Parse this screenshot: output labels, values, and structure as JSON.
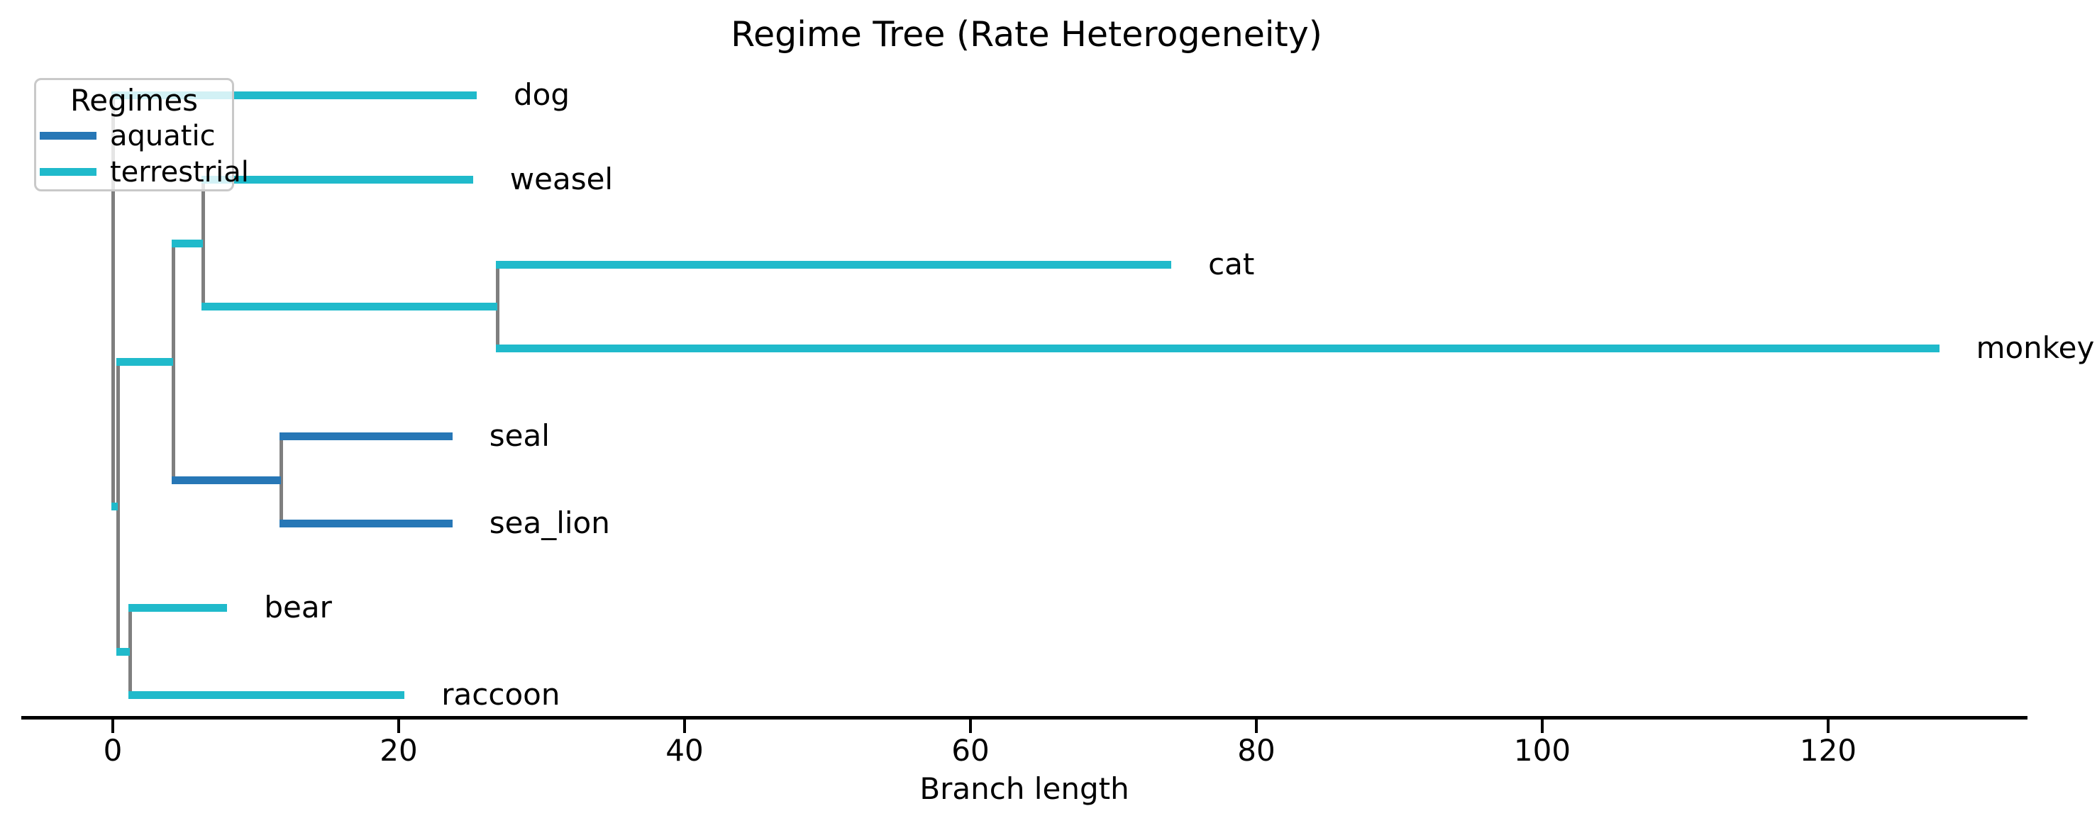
{
  "chart_data": {
    "type": "phylogenetic-tree",
    "title": "Regime Tree (Rate Heterogeneity)",
    "xlabel": "Branch length",
    "x_ticks": {
      "values": [
        0,
        20,
        40,
        60,
        80,
        100,
        120
      ],
      "labels": [
        "0",
        "20",
        "40",
        "60",
        "80",
        "100",
        "120"
      ]
    },
    "axis": {
      "xlim": [
        -6.4,
        134.2
      ],
      "grid": false,
      "visible_spines": [
        "bottom"
      ]
    },
    "legend": {
      "title": "Regimes",
      "position": "upper-left",
      "entries": [
        {
          "label": "aquatic",
          "color": "#2777b6"
        },
        {
          "label": "terrestrial",
          "color": "#20bacb"
        }
      ]
    },
    "regime_colors": {
      "aquatic": "#2777b6",
      "terrestrial": "#20bacb"
    },
    "connector_color": "#7f7f7f",
    "tip_order": [
      "dog",
      "weasel",
      "cat",
      "monkey",
      "seal",
      "sea_lion",
      "bear",
      "raccoon"
    ],
    "nodes": [
      {
        "id": "root",
        "parent": null,
        "length": 0,
        "regime": "terrestrial",
        "tip": false
      },
      {
        "id": "dog",
        "parent": "root",
        "length": 25.46,
        "regime": "terrestrial",
        "tip": true
      },
      {
        "id": "A",
        "parent": "root",
        "length": 0.36,
        "regime": "terrestrial",
        "tip": false
      },
      {
        "id": "B",
        "parent": "A",
        "length": 0.85,
        "regime": "terrestrial",
        "tip": false
      },
      {
        "id": "raccoon",
        "parent": "B",
        "length": 19.2,
        "regime": "terrestrial",
        "tip": true
      },
      {
        "id": "bear",
        "parent": "B",
        "length": 6.8,
        "regime": "terrestrial",
        "tip": true
      },
      {
        "id": "C",
        "parent": "A",
        "length": 3.87,
        "regime": "terrestrial",
        "tip": false
      },
      {
        "id": "D",
        "parent": "C",
        "length": 7.53,
        "regime": "aquatic",
        "tip": false
      },
      {
        "id": "seal",
        "parent": "D",
        "length": 12.0,
        "regime": "aquatic",
        "tip": true
      },
      {
        "id": "sea_lion",
        "parent": "D",
        "length": 12.0,
        "regime": "aquatic",
        "tip": true
      },
      {
        "id": "E",
        "parent": "C",
        "length": 2.09,
        "regime": "terrestrial",
        "tip": false
      },
      {
        "id": "F",
        "parent": "E",
        "length": 20.59,
        "regime": "terrestrial",
        "tip": false
      },
      {
        "id": "monkey",
        "parent": "F",
        "length": 100.86,
        "regime": "terrestrial",
        "tip": true
      },
      {
        "id": "cat",
        "parent": "F",
        "length": 47.14,
        "regime": "terrestrial",
        "tip": true
      },
      {
        "id": "weasel",
        "parent": "E",
        "length": 18.88,
        "regime": "terrestrial",
        "tip": true
      }
    ]
  }
}
